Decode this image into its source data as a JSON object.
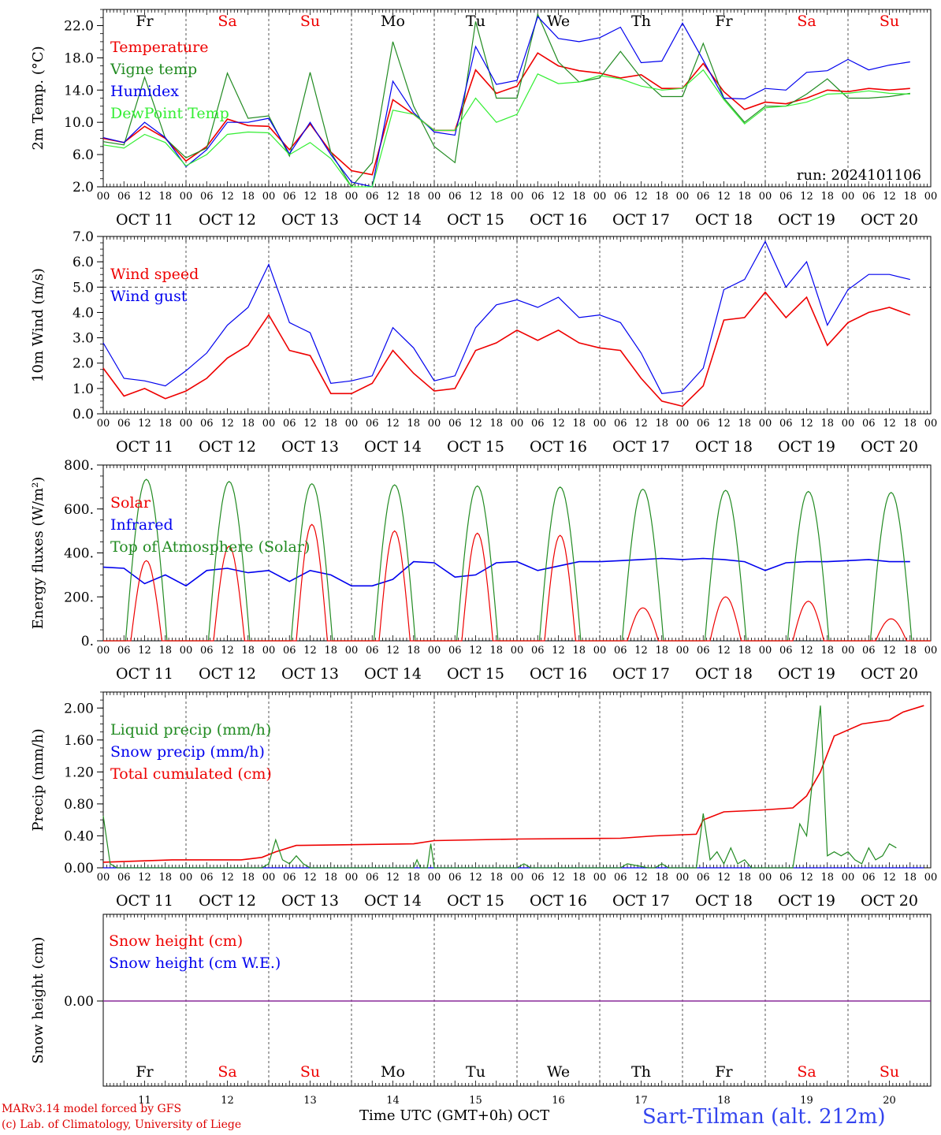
{
  "chart_data": [
    {
      "type": "line",
      "ylabel": "2m Temp. (°C)",
      "ylim": [
        2.0,
        24.0
      ],
      "yticks": [
        "2.0",
        "6.0",
        "10.0",
        "14.0",
        "18.0",
        "22.0"
      ],
      "ytick_values": [
        2,
        6,
        10,
        14,
        18,
        22
      ],
      "day_names": [
        "Fr",
        "Sa",
        "Su",
        "Mo",
        "Tu",
        "We",
        "Th",
        "Fr",
        "Sa",
        "Su"
      ],
      "annotation": "run: 2024101106",
      "x": [
        0,
        6,
        12,
        18,
        24,
        30,
        36,
        42,
        48,
        54,
        60,
        66,
        72,
        78,
        84,
        90,
        96,
        102,
        108,
        114,
        120,
        126,
        132,
        138,
        144,
        150,
        156,
        162,
        168,
        174,
        180,
        186,
        192,
        198,
        204,
        210,
        216,
        222,
        228,
        234
      ],
      "series": [
        {
          "name": "Temperature",
          "color": "#ee0000",
          "values": [
            8.0,
            7.5,
            9.5,
            8.0,
            5.2,
            7.0,
            10.4,
            9.6,
            9.5,
            6.6,
            9.8,
            6.3,
            4.0,
            3.5,
            12.8,
            11.0,
            9.0,
            9.0,
            16.5,
            13.6,
            14.5,
            18.6,
            17.0,
            16.4,
            16.1,
            15.5,
            15.9,
            14.2,
            14.2,
            17.3,
            13.8,
            11.6,
            12.5,
            12.3,
            13.0,
            14.0,
            13.8,
            14.2,
            14.0,
            14.2
          ]
        },
        {
          "name": "Vigne temp",
          "color": "#228b22",
          "values": [
            7.6,
            7.2,
            15.6,
            8.0,
            5.6,
            6.8,
            16.1,
            10.5,
            10.8,
            5.8,
            16.2,
            6.3,
            2.0,
            5.0,
            20.0,
            12.0,
            7.0,
            5.0,
            22.5,
            13.0,
            13.0,
            23.4,
            17.5,
            15.0,
            15.5,
            18.8,
            15.5,
            13.2,
            13.2,
            19.8,
            13.0,
            10.0,
            12.0,
            12.0,
            13.5,
            15.4,
            13.0,
            13.0,
            13.2,
            13.6
          ]
        },
        {
          "name": "Humidex",
          "color": "#0000ee",
          "values": [
            8.1,
            7.5,
            10.0,
            8.1,
            4.5,
            6.6,
            10.0,
            10.0,
            10.5,
            6.1,
            10.0,
            6.0,
            2.6,
            2.0,
            15.1,
            11.2,
            8.8,
            8.4,
            19.4,
            14.7,
            15.2,
            23.1,
            20.4,
            20.0,
            20.5,
            21.8,
            17.4,
            17.6,
            22.3,
            17.7,
            13.0,
            12.9,
            14.2,
            14.0,
            16.2,
            16.4,
            17.8,
            16.5,
            17.1,
            17.5
          ]
        },
        {
          "name": "DewPoint Temp",
          "color": "#33ee33",
          "values": [
            7.2,
            6.8,
            8.5,
            7.5,
            4.6,
            6.0,
            8.5,
            8.8,
            8.7,
            6.0,
            7.5,
            5.5,
            2.0,
            2.0,
            11.5,
            11.0,
            9.0,
            9.0,
            13.0,
            10.0,
            11.0,
            16.0,
            14.8,
            15.0,
            15.8,
            15.4,
            14.5,
            14.0,
            14.2,
            16.5,
            12.8,
            9.8,
            11.8,
            12.0,
            12.5,
            13.5,
            13.6,
            13.9,
            13.6,
            13.5
          ]
        }
      ]
    },
    {
      "type": "line",
      "ylabel": "10m Wind (m/s)",
      "ylim": [
        0.0,
        7.0
      ],
      "yticks": [
        "0.0",
        "1.0",
        "2.0",
        "3.0",
        "4.0",
        "5.0",
        "6.0",
        "7.0"
      ],
      "ytick_values": [
        0,
        1,
        2,
        3,
        4,
        5,
        6,
        7
      ],
      "x": [
        0,
        6,
        12,
        18,
        24,
        30,
        36,
        42,
        48,
        54,
        60,
        66,
        72,
        78,
        84,
        90,
        96,
        102,
        108,
        114,
        120,
        126,
        132,
        138,
        144,
        150,
        156,
        162,
        168,
        174,
        180,
        186,
        192,
        198,
        204,
        210,
        216,
        222,
        228,
        234
      ],
      "series": [
        {
          "name": "Wind speed",
          "color": "#ee0000",
          "values": [
            1.8,
            0.7,
            1.0,
            0.6,
            0.9,
            1.4,
            2.2,
            2.7,
            3.9,
            2.5,
            2.3,
            0.8,
            0.8,
            1.2,
            2.5,
            1.6,
            0.9,
            1.0,
            2.5,
            2.8,
            3.3,
            2.9,
            3.3,
            2.8,
            2.6,
            2.5,
            1.4,
            0.5,
            0.3,
            1.1,
            3.7,
            3.8,
            4.8,
            3.8,
            4.6,
            2.7,
            3.6,
            4.0,
            4.2,
            3.9
          ]
        },
        {
          "name": "Wind gust",
          "color": "#0000ee",
          "values": [
            2.8,
            1.4,
            1.3,
            1.1,
            1.7,
            2.4,
            3.5,
            4.2,
            5.9,
            3.6,
            3.2,
            1.2,
            1.3,
            1.5,
            3.4,
            2.6,
            1.3,
            1.5,
            3.4,
            4.3,
            4.5,
            4.2,
            4.6,
            3.8,
            3.9,
            3.6,
            2.4,
            0.8,
            0.9,
            1.8,
            4.9,
            5.3,
            6.8,
            5.0,
            6.0,
            3.5,
            4.9,
            5.5,
            5.5,
            5.3
          ]
        }
      ]
    },
    {
      "type": "line",
      "ylabel": "Energy fluxes (W/m²)",
      "ylim": [
        0,
        800
      ],
      "yticks": [
        "0.",
        "200.",
        "400.",
        "600.",
        "800."
      ],
      "ytick_values": [
        0,
        200,
        400,
        600,
        800
      ],
      "series": [
        {
          "name": "Solar",
          "color": "#ee0000",
          "peaks": [
            365,
            430,
            530,
            500,
            490,
            480,
            150,
            200,
            180,
            100
          ]
        },
        {
          "name": "Infrared",
          "color": "#0000ee",
          "values": [
            335,
            330,
            260,
            300,
            250,
            320,
            330,
            310,
            320,
            270,
            320,
            300,
            250,
            250,
            280,
            360,
            355,
            290,
            300,
            355,
            360,
            320,
            340,
            360,
            360,
            365,
            370,
            375,
            370,
            375,
            370,
            360,
            320,
            355,
            360,
            360,
            365,
            370,
            360,
            360
          ]
        },
        {
          "name": "Top of Atmosphere (Solar)",
          "color": "#228b22",
          "peaks": [
            735,
            725,
            715,
            710,
            705,
            700,
            690,
            685,
            680,
            675
          ]
        }
      ]
    },
    {
      "type": "line",
      "ylabel": "Precip (mm/h)",
      "ylim": [
        0.0,
        2.2
      ],
      "yticks": [
        "0.00",
        "0.40",
        "0.80",
        "1.20",
        "1.60",
        "2.00"
      ],
      "ytick_values": [
        0,
        0.4,
        0.8,
        1.2,
        1.6,
        2.0
      ],
      "series": [
        {
          "name": "Liquid precip (mm/h)",
          "color": "#228b22",
          "values": [
            [
              0,
              0.65
            ],
            [
              2,
              0.05
            ],
            [
              4,
              0
            ],
            [
              46,
              0
            ],
            [
              48,
              0.05
            ],
            [
              50,
              0.35
            ],
            [
              52,
              0.1
            ],
            [
              54,
              0.05
            ],
            [
              56,
              0.15
            ],
            [
              58,
              0.05
            ],
            [
              60,
              0
            ],
            [
              90,
              0
            ],
            [
              91,
              0.1
            ],
            [
              92,
              0
            ],
            [
              94,
              0
            ],
            [
              95,
              0.3
            ],
            [
              96,
              0
            ],
            [
              120,
              0
            ],
            [
              122,
              0.05
            ],
            [
              124,
              0
            ],
            [
              150,
              0
            ],
            [
              152,
              0.05
            ],
            [
              158,
              0
            ],
            [
              160,
              0
            ],
            [
              162,
              0.05
            ],
            [
              164,
              0
            ],
            [
              172,
              0
            ],
            [
              174,
              0.68
            ],
            [
              176,
              0.1
            ],
            [
              178,
              0.2
            ],
            [
              180,
              0.05
            ],
            [
              182,
              0.25
            ],
            [
              184,
              0.05
            ],
            [
              186,
              0.1
            ],
            [
              188,
              0
            ],
            [
              200,
              0
            ],
            [
              202,
              0.55
            ],
            [
              204,
              0.4
            ],
            [
              208,
              2.03
            ],
            [
              210,
              0.15
            ],
            [
              212,
              0.2
            ],
            [
              214,
              0.15
            ],
            [
              216,
              0.2
            ],
            [
              218,
              0.1
            ],
            [
              220,
              0.05
            ],
            [
              222,
              0.25
            ],
            [
              224,
              0.1
            ],
            [
              226,
              0.15
            ],
            [
              228,
              0.3
            ],
            [
              230,
              0.25
            ]
          ]
        },
        {
          "name": "Snow precip (mm/h)",
          "color": "#0000ee",
          "values": [
            [
              0,
              0
            ],
            [
              238,
              0
            ]
          ]
        },
        {
          "name": "Total cumulated (cm)",
          "color": "#ee0000",
          "values": [
            [
              0,
              0.07
            ],
            [
              20,
              0.1
            ],
            [
              40,
              0.1
            ],
            [
              46,
              0.13
            ],
            [
              50,
              0.2
            ],
            [
              56,
              0.28
            ],
            [
              90,
              0.3
            ],
            [
              96,
              0.34
            ],
            [
              120,
              0.36
            ],
            [
              150,
              0.37
            ],
            [
              160,
              0.4
            ],
            [
              172,
              0.42
            ],
            [
              174,
              0.6
            ],
            [
              180,
              0.7
            ],
            [
              190,
              0.72
            ],
            [
              200,
              0.75
            ],
            [
              204,
              0.9
            ],
            [
              208,
              1.2
            ],
            [
              212,
              1.65
            ],
            [
              220,
              1.8
            ],
            [
              228,
              1.85
            ],
            [
              232,
              1.95
            ],
            [
              238,
              2.03
            ]
          ]
        }
      ]
    },
    {
      "type": "line",
      "ylabel": "Snow height (cm)",
      "yticks": [
        "0.00"
      ],
      "series": [
        {
          "name": "Snow height (cm)",
          "color": "#ee0000",
          "values": [
            [
              0,
              0
            ],
            [
              238,
              0
            ]
          ]
        },
        {
          "name": "Snow height (cm W.E.)",
          "color": "#0000ee",
          "values": [
            [
              0,
              0
            ],
            [
              238,
              0
            ]
          ]
        }
      ],
      "bottom_day_names": [
        "Fr",
        "Sa",
        "Su",
        "Mo",
        "Tu",
        "We",
        "Th",
        "Fr",
        "Sa",
        "Su"
      ],
      "bottom_day_numbers": [
        "11",
        "12",
        "13",
        "14",
        "15",
        "16",
        "17",
        "18",
        "19",
        "20"
      ]
    }
  ],
  "x_axis": {
    "hour_labels": [
      "00",
      "06",
      "12",
      "18"
    ],
    "final_hour_label": "00",
    "date_labels": [
      "OCT 11",
      "OCT 12",
      "OCT 13",
      "OCT 14",
      "OCT 15",
      "OCT 16",
      "OCT 17",
      "OCT 18",
      "OCT 19",
      "OCT 20"
    ],
    "title": "Time UTC (GMT+0h)",
    "month": "OCT"
  },
  "weekend_color": "#ee0000",
  "footer": {
    "credit1": "MARv3.14 model forced by GFS",
    "credit2": "(c) Lab. of Climatology, University of Liege",
    "station": "Sart-Tilman (alt. 212m)"
  }
}
